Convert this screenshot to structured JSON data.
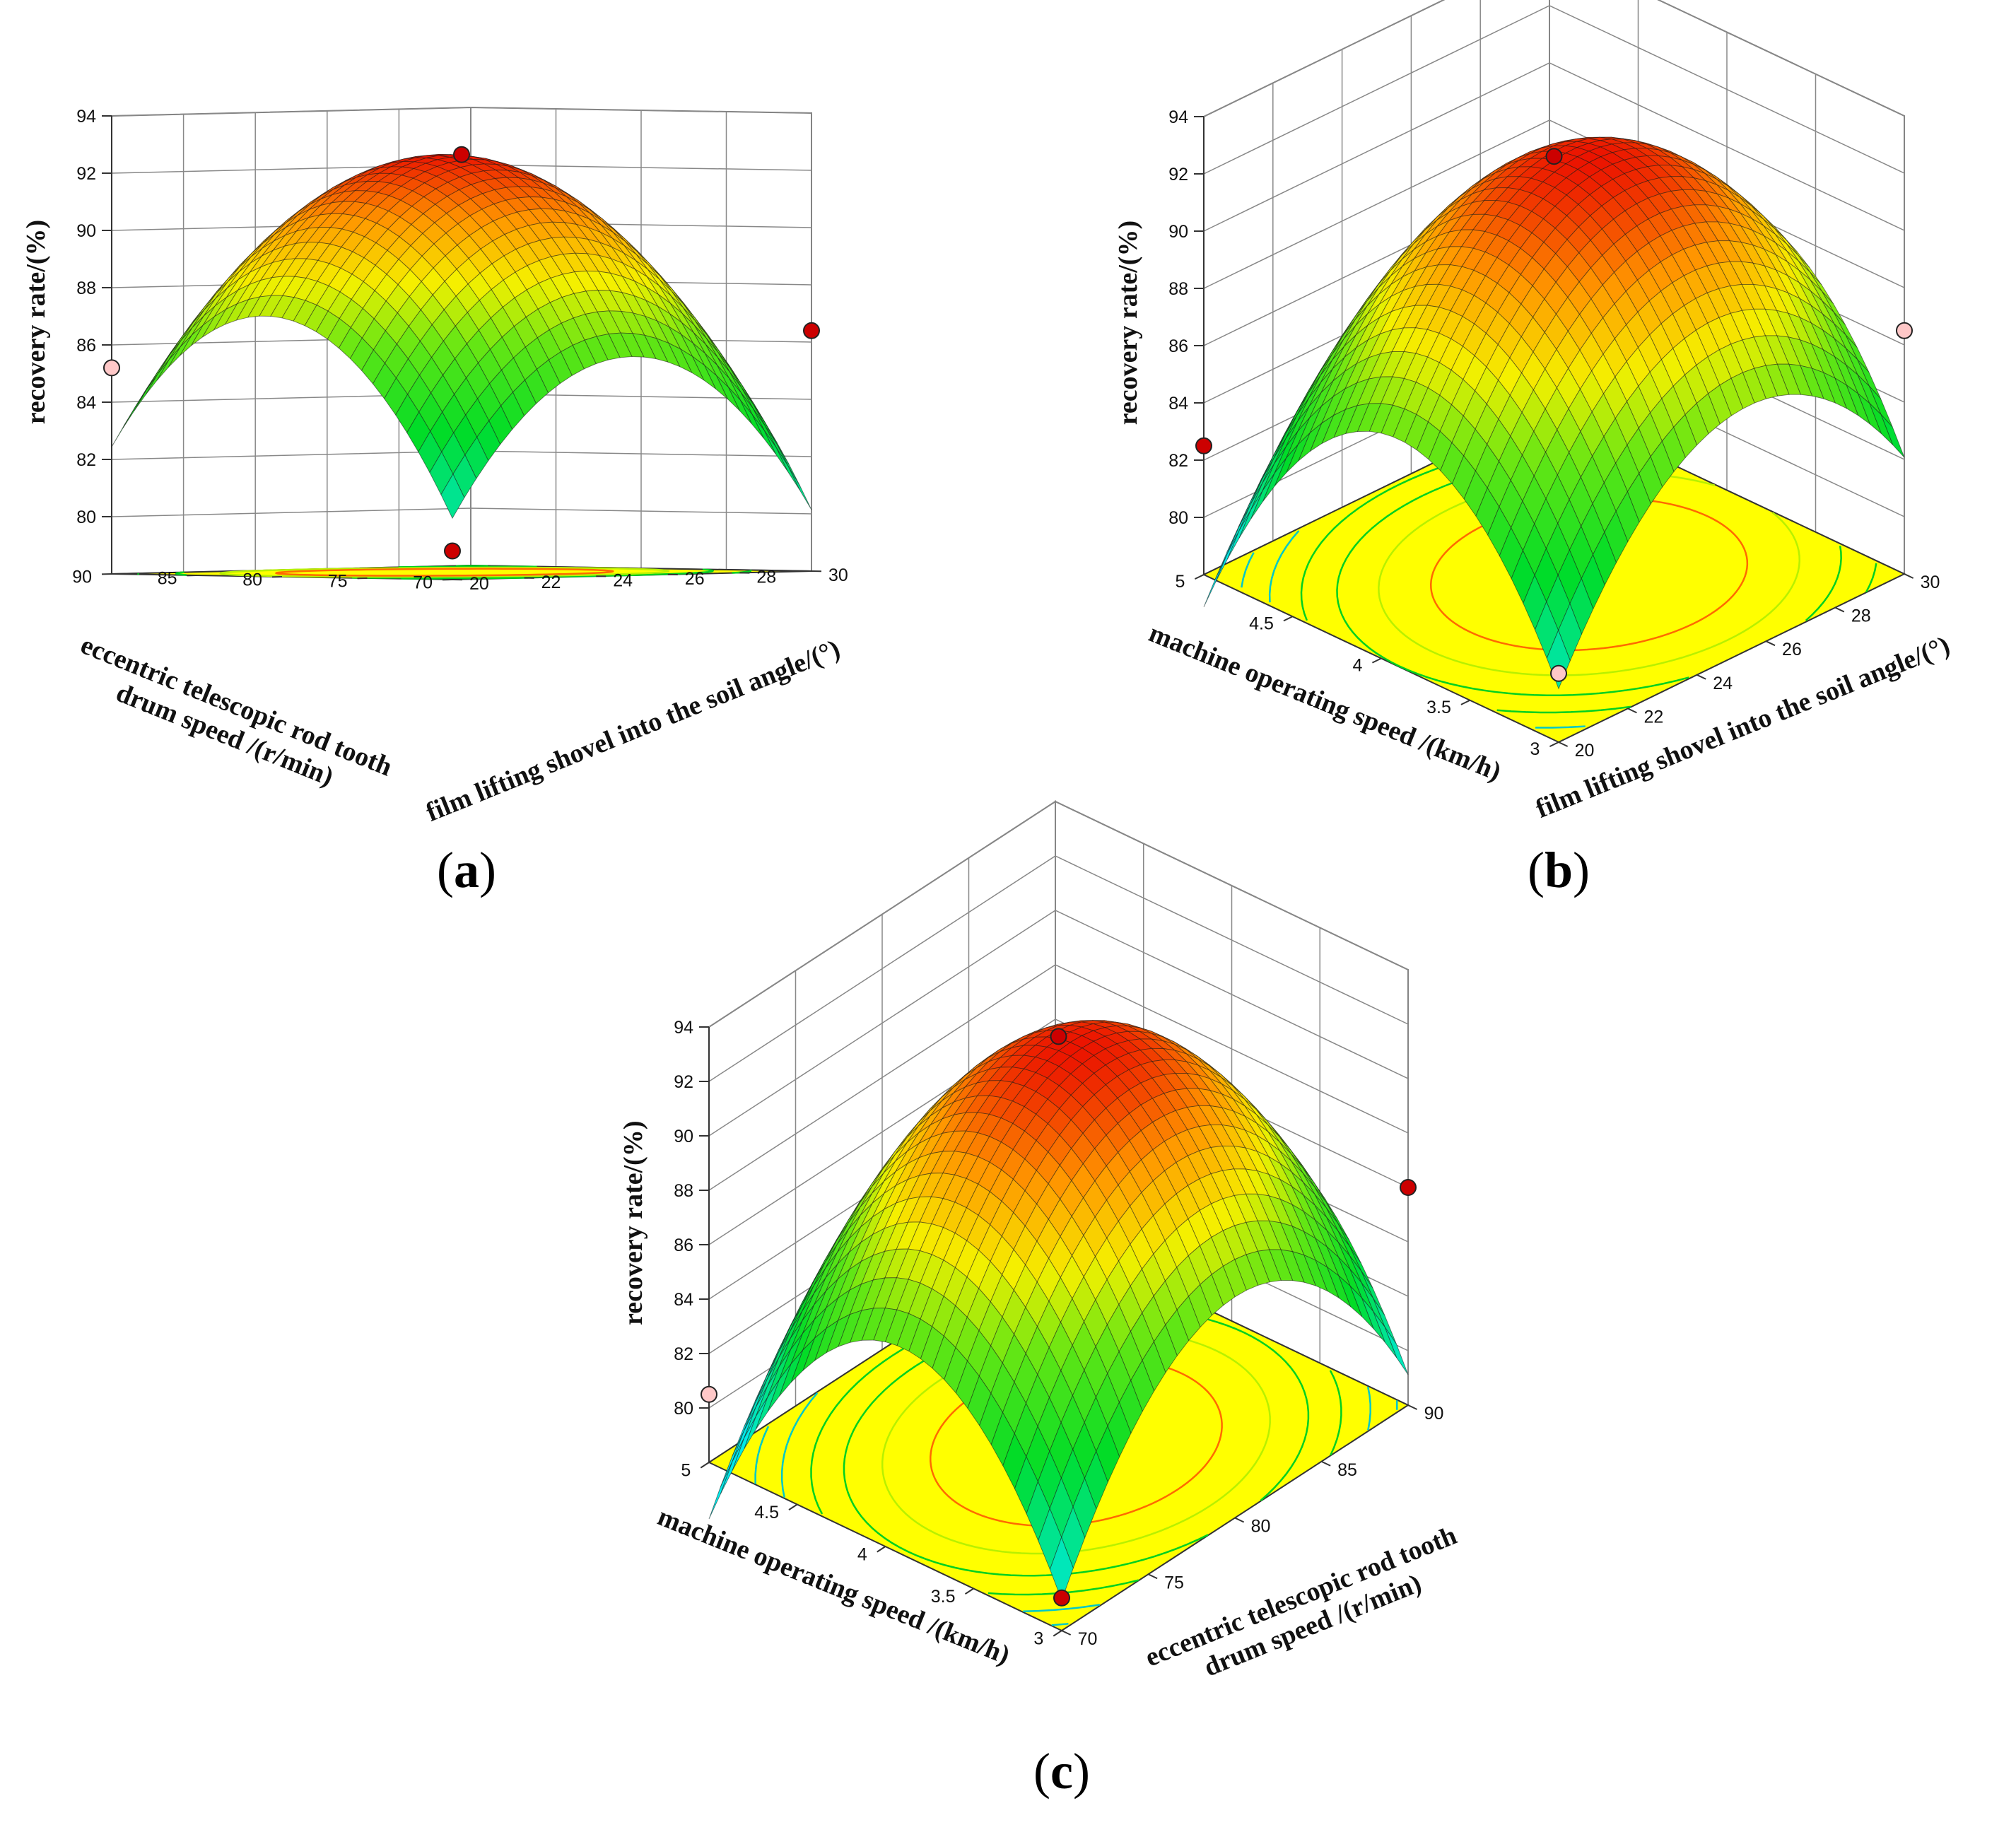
{
  "chart_data": [
    {
      "type": "surface",
      "panel": "a",
      "caption": {
        "open": "(",
        "letter": "a",
        "close": ")"
      },
      "zlabel": "recovery rate/(%)",
      "zticks": [
        80,
        82,
        84,
        86,
        88,
        90,
        92,
        94
      ],
      "zlim": [
        78,
        94
      ],
      "x": {
        "label": "eccentric telescopic rod tooth drum speed /(r/min)",
        "label_lines": [
          "eccentric telescopic rod tooth",
          "drum speed /(r/min)"
        ],
        "ticks": [
          70,
          75,
          80,
          85,
          90
        ],
        "range": [
          70,
          90
        ]
      },
      "y": {
        "label": "film lifting shovel into the soil angle/(°)",
        "label_lines": [
          "film lifting shovel into the soil angle/(°)"
        ],
        "ticks": [
          20,
          22,
          24,
          26,
          28,
          30
        ],
        "range": [
          20,
          30
        ]
      },
      "surface_model": {
        "z_opt": 92.6,
        "u_opt": 0.55,
        "v_opt": 0.5,
        "a": 23,
        "b": 22,
        "c": 0
      },
      "design_points": [
        {
          "x": 70,
          "y": 20,
          "z": 79.0,
          "color": "red"
        },
        {
          "x": 80,
          "y": 25,
          "z": 92.6,
          "color": "red"
        },
        {
          "x": 90,
          "y": 20,
          "z": 85.2,
          "color": "pink"
        },
        {
          "x": 70,
          "y": 30,
          "z": 86.4,
          "color": "red"
        }
      ],
      "contour_levels": [
        84,
        86,
        88,
        90
      ]
    },
    {
      "type": "surface",
      "panel": "b",
      "caption": {
        "open": "(",
        "letter": "b",
        "close": ")"
      },
      "zlabel": "recovery rate/(%)",
      "zticks": [
        80,
        82,
        84,
        86,
        88,
        90,
        92,
        94
      ],
      "zlim": [
        78,
        94
      ],
      "x": {
        "label": "machine operating speed /(km/h)",
        "label_lines": [
          "machine operating speed /(km/h)"
        ],
        "ticks": [
          3,
          3.5,
          4,
          4.5,
          5
        ],
        "range": [
          3,
          5
        ]
      },
      "y": {
        "label": "film lifting shovel into the soil angle/(°)",
        "label_lines": [
          "film lifting shovel into the soil angle/(°)"
        ],
        "ticks": [
          20,
          22,
          24,
          26,
          28,
          30
        ],
        "range": [
          20,
          30
        ]
      },
      "surface_model": {
        "z_opt": 92.6,
        "u_opt": 0.45,
        "v_opt": 0.55,
        "a": 30,
        "b": 22,
        "c": 0
      },
      "design_points": [
        {
          "x": 3,
          "y": 20,
          "z": 80.4,
          "color": "pink"
        },
        {
          "x": 4,
          "y": 25,
          "z": 92.6,
          "color": "red"
        },
        {
          "x": 5,
          "y": 20,
          "z": 82.5,
          "color": "red"
        },
        {
          "x": 3,
          "y": 30,
          "z": 86.5,
          "color": "pink"
        }
      ],
      "contour_levels": [
        80,
        82,
        84,
        86,
        88,
        90
      ]
    },
    {
      "type": "surface",
      "panel": "c",
      "caption": {
        "open": "(",
        "letter": "c",
        "close": ")"
      },
      "zlabel": "recovery rate/(%)",
      "zticks": [
        80,
        82,
        84,
        86,
        88,
        90,
        92,
        94
      ],
      "zlim": [
        78,
        94
      ],
      "x": {
        "label": "machine operating speed /(km/h)",
        "label_lines": [
          "machine operating speed /(km/h)"
        ],
        "ticks": [
          3,
          3.5,
          4,
          4.5,
          5
        ],
        "range": [
          3,
          5
        ]
      },
      "y": {
        "label": "eccentric telescopic rod tooth drum speed /(r/min)",
        "label_lines": [
          "eccentric telescopic rod tooth",
          "drum speed /(r/min)"
        ],
        "ticks": [
          70,
          75,
          80,
          85,
          90
        ],
        "range": [
          70,
          90
        ]
      },
      "surface_model": {
        "z_opt": 92.6,
        "u_opt": 0.45,
        "v_opt": 0.5,
        "a": 32,
        "b": 28,
        "c": 0
      },
      "design_points": [
        {
          "x": 3,
          "y": 70,
          "z": 79.2,
          "color": "red"
        },
        {
          "x": 4,
          "y": 80,
          "z": 92.6,
          "color": "red"
        },
        {
          "x": 5,
          "y": 70,
          "z": 80.5,
          "color": "pink"
        },
        {
          "x": 3,
          "y": 90,
          "z": 86.0,
          "color": "red"
        }
      ],
      "contour_levels": [
        80,
        82,
        84,
        86,
        88,
        90
      ]
    }
  ]
}
